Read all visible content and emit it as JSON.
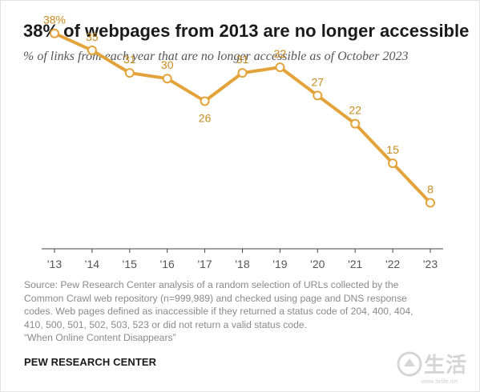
{
  "title": "38% of webpages from 2013 are no longer accessible",
  "subtitle": "% of links from each year that are no longer accessible as of October 2023",
  "source_lines": [
    "Source: Pew Research Center analysis of a random selection of URLs collected by the",
    "Common Crawl web repository (n=999,989) and checked using page and DNS response",
    "codes. Web pages defined as inaccessible if they returned a status code of 204, 400, 404,",
    "410, 500, 501, 502, 503, 523 or did not return a valid status code.",
    "“When Online Content Disappears”"
  ],
  "organization": "PEW RESEARCH CENTER",
  "watermark": {
    "text": "生活",
    "url": "www.3elife.net"
  },
  "colors": {
    "line": "#e3a33a",
    "label": "#c88a1c",
    "axis": "#555555"
  },
  "chart_data": {
    "type": "line",
    "title": "38% of webpages from 2013 are no longer accessible",
    "subtitle": "% of links from each year that are no longer accessible as of October 2023",
    "categories": [
      "'13",
      "'14",
      "'15",
      "'16",
      "'17",
      "'18",
      "'19",
      "'20",
      "'21",
      "'22",
      "'23"
    ],
    "values": [
      38,
      35,
      31,
      30,
      26,
      31,
      32,
      27,
      22,
      15,
      8
    ],
    "value_labels": [
      "38%",
      "35",
      "31",
      "30",
      "26",
      "31",
      "32",
      "27",
      "22",
      "15",
      "8"
    ],
    "label_positions": [
      "above",
      "above",
      "above",
      "above",
      "below",
      "above",
      "above",
      "above",
      "above",
      "above",
      "above"
    ],
    "xlabel": "",
    "ylabel": "",
    "ylim": [
      0,
      45
    ],
    "grid": false,
    "y_axis_shown": false,
    "legend": "none"
  }
}
